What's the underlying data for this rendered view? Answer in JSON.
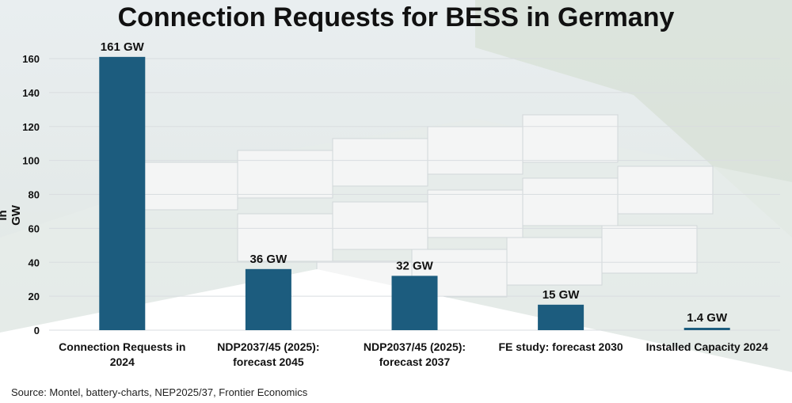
{
  "chart_data": {
    "type": "bar",
    "title": "Connection Requests for BESS in Germany",
    "ylabel": "in GW",
    "xlabel": "",
    "ylim": [
      0,
      160
    ],
    "yticks": [
      0,
      20,
      40,
      60,
      80,
      100,
      120,
      140,
      160
    ],
    "grid": true,
    "categories": [
      [
        "Connection Requests in",
        "2024"
      ],
      [
        "NDP2037/45 (2025):",
        "forecast 2045"
      ],
      [
        "NDP2037/45 (2025):",
        "forecast 2037"
      ],
      [
        "FE study: forecast 2030"
      ],
      [
        "Installed Capacity 2024"
      ]
    ],
    "values": [
      161,
      36,
      32,
      15,
      1.4
    ],
    "data_labels": [
      "161 GW",
      "36 GW",
      "32 GW",
      "15 GW",
      "1.4 GW"
    ],
    "colors": {
      "bar": "#1c5c7e",
      "text": "#111111",
      "grid": "#d9dde0"
    }
  },
  "source": "Source: Montel, battery-charts, NEP2025/37, Frontier Economics"
}
